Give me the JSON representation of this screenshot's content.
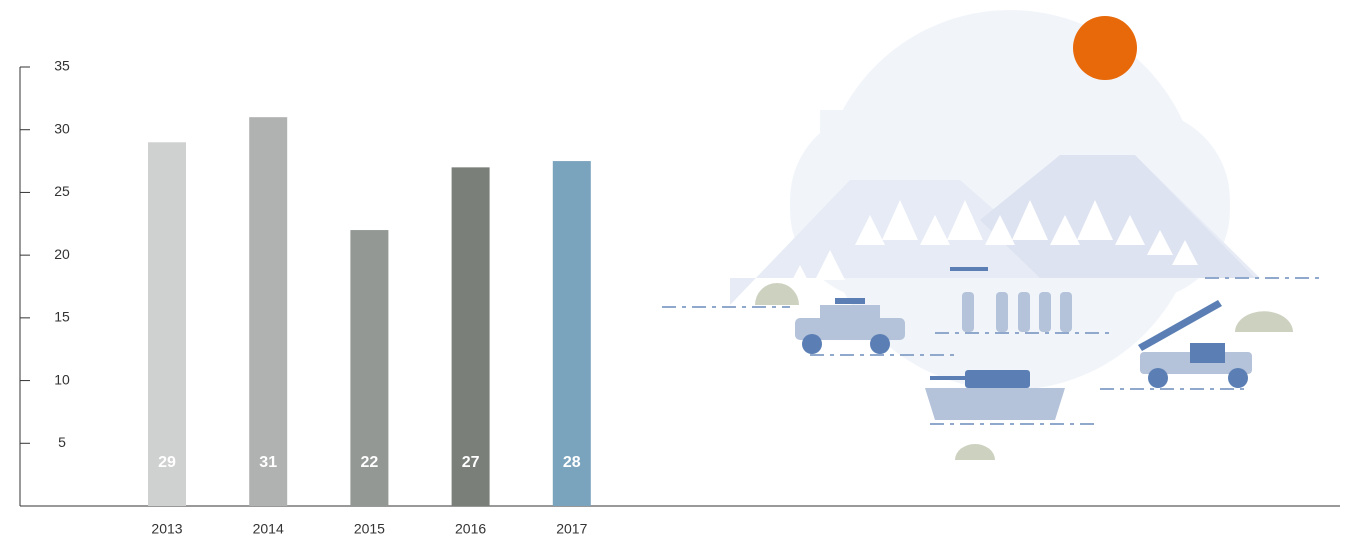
{
  "chart_data": {
    "type": "bar",
    "categories": [
      "2013",
      "2014",
      "2015",
      "2016",
      "2017"
    ],
    "values": [
      29,
      31,
      22,
      27,
      27.5
    ],
    "value_labels": [
      "29",
      "31",
      "22",
      "27",
      "28"
    ],
    "colors": [
      "#cfd1d0",
      "#b0b2b1",
      "#939894",
      "#7a7f7a",
      "#7aa3be"
    ],
    "ylim": [
      0,
      35
    ],
    "yticks": [
      5,
      10,
      15,
      20,
      25,
      30,
      35
    ],
    "grid": false
  }
}
